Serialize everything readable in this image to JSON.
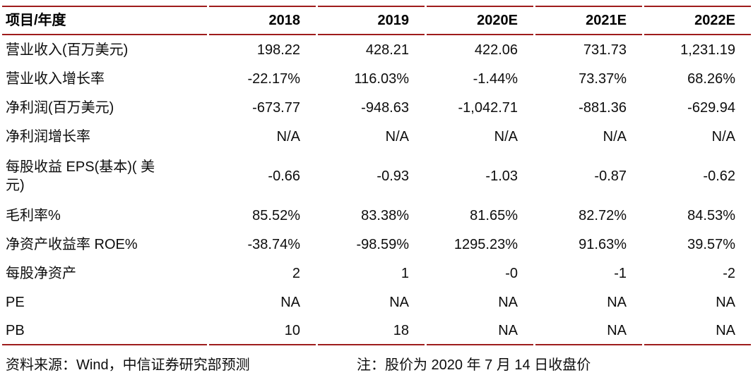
{
  "colors": {
    "rule": "#9e1c1c"
  },
  "table": {
    "header": [
      "项目/年度",
      "2018",
      "2019",
      "2020E",
      "2021E",
      "2022E"
    ],
    "rows": [
      {
        "label": "营业收入(百万美元)",
        "values": [
          "198.22",
          "428.21",
          "422.06",
          "731.73",
          "1,231.19"
        ]
      },
      {
        "label": "营业收入增长率",
        "values": [
          "-22.17%",
          "116.03%",
          "-1.44%",
          "73.37%",
          "68.26%"
        ]
      },
      {
        "label": "净利润(百万美元)",
        "values": [
          "-673.77",
          "-948.63",
          "-1,042.71",
          "-881.36",
          "-629.94"
        ]
      },
      {
        "label": "净利润增长率",
        "values": [
          "N/A",
          "N/A",
          "N/A",
          "N/A",
          "N/A"
        ]
      },
      {
        "label": "每股收益 EPS(基本)( 美\n元)",
        "values": [
          "-0.66",
          "-0.93",
          "-1.03",
          "-0.87",
          "-0.62"
        ]
      },
      {
        "label": "毛利率%",
        "values": [
          "85.52%",
          "83.38%",
          "81.65%",
          "82.72%",
          "84.53%"
        ]
      },
      {
        "label": "净资产收益率 ROE%",
        "values": [
          "-38.74%",
          "-98.59%",
          "1295.23%",
          "91.63%",
          "39.57%"
        ]
      },
      {
        "label": "每股净资产",
        "values": [
          "2",
          "1",
          "-0",
          "-1",
          "-2"
        ]
      },
      {
        "label": "PE",
        "values": [
          "NA",
          "NA",
          "NA",
          "NA",
          "NA"
        ]
      },
      {
        "label": "PB",
        "values": [
          "10",
          "18",
          "NA",
          "NA",
          "NA"
        ]
      }
    ]
  },
  "footer": {
    "source": "资料来源：Wind，中信证券研究部预测",
    "note": "注：股价为 2020 年 7 月 14 日收盘价"
  }
}
